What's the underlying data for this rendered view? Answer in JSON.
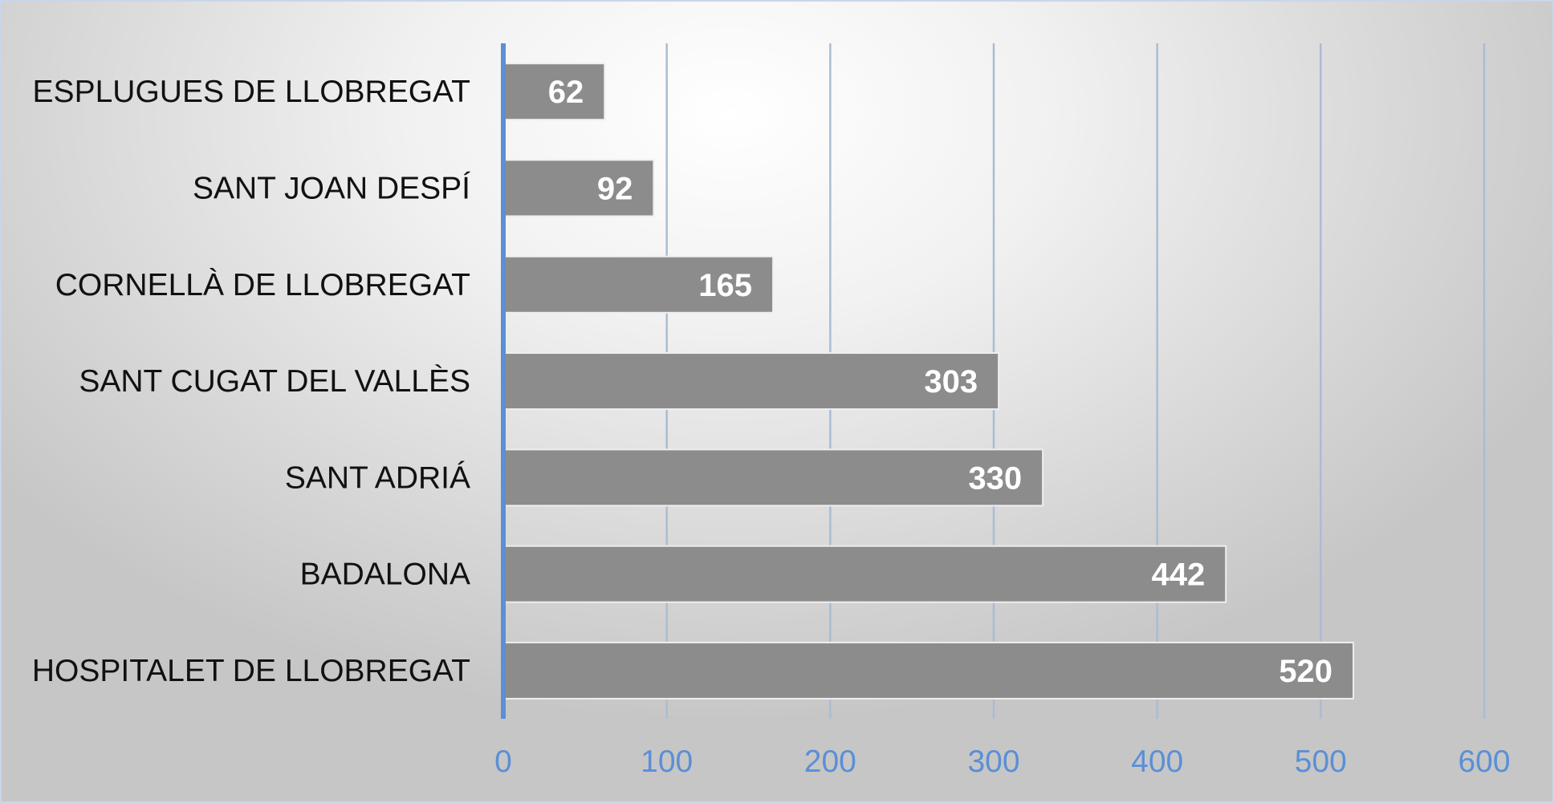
{
  "chart_data": {
    "type": "bar",
    "orientation": "horizontal",
    "categories": [
      "ESPLUGUES DE LLOBREGAT",
      "SANT JOAN DESPÍ",
      "CORNELLÀ DE LLOBREGAT",
      "SANT CUGAT DEL VALLÈS",
      "SANT ADRIÁ",
      "BADALONA",
      "HOSPITALET DE LLOBREGAT"
    ],
    "values": [
      62,
      92,
      165,
      303,
      330,
      442,
      520
    ],
    "xlim": [
      0,
      600
    ],
    "xticks": [
      0,
      100,
      200,
      300,
      400,
      500,
      600
    ],
    "xtick_labels": [
      "0",
      "100",
      "200",
      "300",
      "400",
      "500",
      "600"
    ],
    "grid": "vertical",
    "data_labels": true,
    "legend": "none",
    "title": "",
    "xlabel": "",
    "ylabel": ""
  },
  "colors": {
    "bar": "#8c8c8c",
    "bar_border": "#eeeeee",
    "axis_line": "#5b8fd6",
    "tick_label": "#5b8fd6",
    "gridline": "#a9bdd3",
    "category_label": "#111111",
    "value_label": "#ffffff"
  }
}
